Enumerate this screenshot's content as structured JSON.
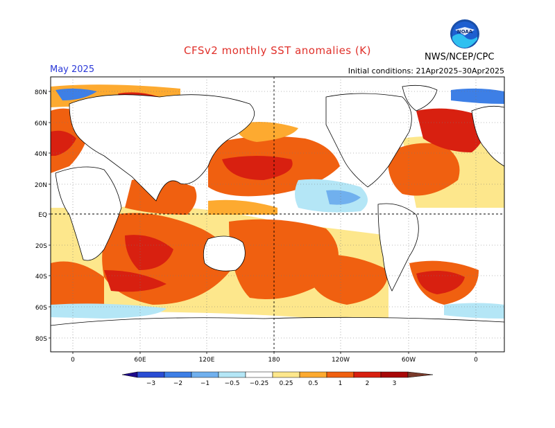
{
  "header": {
    "title": "CFSv2 monthly SST anomalies (K)",
    "month": "May 2025",
    "initial_conditions": "Initial conditions: 21Apr2025–30Apr2025",
    "agency": "NWS/NCEP/CPC",
    "logo_text": "NOAA"
  },
  "axes": {
    "lat_labels": [
      "80N",
      "60N",
      "40N",
      "20N",
      "EQ",
      "20S",
      "40S",
      "60S",
      "80S"
    ],
    "lon_labels": [
      "0",
      "60E",
      "120E",
      "180",
      "120W",
      "60W",
      "0"
    ]
  },
  "colorbar": {
    "labels": [
      "−3",
      "−2",
      "−1",
      "−0.5",
      "−0.25",
      "0.25",
      "0.5",
      "1",
      "2",
      "3"
    ],
    "colors": [
      "#1e0a8c",
      "#2a4dd4",
      "#3d7fe6",
      "#70b0ee",
      "#b4e6f6",
      "#ffffff",
      "#fde78c",
      "#fdaa30",
      "#f06010",
      "#d82010",
      "#a80808",
      "#7a3a2a"
    ]
  }
}
